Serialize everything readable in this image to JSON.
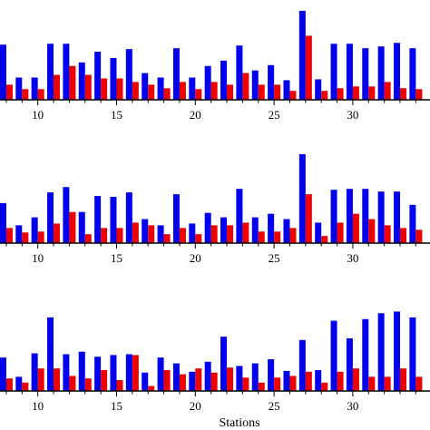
{
  "chart_data": [
    {
      "type": "bar",
      "panel": 1,
      "categories": [
        8,
        9,
        10,
        11,
        12,
        13,
        14,
        15,
        16,
        17,
        18,
        19,
        20,
        21,
        22,
        23,
        24,
        25,
        26,
        27,
        28,
        29,
        30,
        31,
        32,
        33,
        34
      ],
      "xticks": [
        "10",
        "15",
        "20",
        "25",
        "30"
      ],
      "xlim": [
        7.6,
        34.9
      ],
      "ylim": [
        0,
        1.02
      ],
      "series": [
        {
          "color": "#0000ee",
          "values": [
            0.62,
            0.25,
            0.25,
            0.63,
            0.63,
            0.42,
            0.54,
            0.47,
            0.57,
            0.3,
            0.25,
            0.58,
            0.25,
            0.38,
            0.44,
            0.61,
            0.33,
            0.39,
            0.22,
            1.0,
            0.23,
            0.63,
            0.63,
            0.58,
            0.6,
            0.64,
            0.58
          ]
        },
        {
          "color": "#ee0000",
          "values": [
            0.17,
            0.12,
            0.12,
            0.28,
            0.38,
            0.28,
            0.24,
            0.24,
            0.2,
            0.17,
            0.13,
            0.2,
            0.12,
            0.2,
            0.17,
            0.3,
            0.17,
            0.17,
            0.1,
            0.72,
            0.1,
            0.13,
            0.15,
            0.15,
            0.2,
            0.13,
            0.12
          ]
        }
      ]
    },
    {
      "type": "bar",
      "panel": 2,
      "categories": [
        8,
        9,
        10,
        11,
        12,
        13,
        14,
        15,
        16,
        17,
        18,
        19,
        20,
        21,
        22,
        23,
        24,
        25,
        26,
        27,
        28,
        29,
        30,
        31,
        32,
        33,
        34
      ],
      "xticks": [
        "10",
        "15",
        "20",
        "25",
        "30"
      ],
      "xlim": [
        7.6,
        34.9
      ],
      "ylim": [
        0,
        1.02
      ],
      "series": [
        {
          "color": "#0000ee",
          "values": [
            0.45,
            0.2,
            0.29,
            0.57,
            0.63,
            0.35,
            0.53,
            0.52,
            0.57,
            0.27,
            0.2,
            0.55,
            0.22,
            0.34,
            0.29,
            0.61,
            0.29,
            0.33,
            0.27,
            1.0,
            0.23,
            0.6,
            0.61,
            0.61,
            0.58,
            0.58,
            0.43
          ]
        },
        {
          "color": "#ee0000",
          "values": [
            0.17,
            0.12,
            0.13,
            0.22,
            0.35,
            0.1,
            0.17,
            0.17,
            0.23,
            0.2,
            0.1,
            0.17,
            0.1,
            0.2,
            0.2,
            0.23,
            0.13,
            0.13,
            0.17,
            0.55,
            0.08,
            0.23,
            0.33,
            0.27,
            0.2,
            0.17,
            0.15
          ]
        }
      ]
    },
    {
      "type": "bar",
      "panel": 3,
      "categories": [
        8,
        9,
        10,
        11,
        12,
        13,
        14,
        15,
        16,
        17,
        18,
        19,
        20,
        21,
        22,
        23,
        24,
        25,
        26,
        27,
        28,
        29,
        30,
        31,
        32,
        33,
        34
      ],
      "xticks": [
        "10",
        "15",
        "20",
        "25",
        "30"
      ],
      "xlim": [
        7.6,
        34.9
      ],
      "ylim": [
        0,
        1.02
      ],
      "series": [
        {
          "color": "#0000ee",
          "values": [
            0.4,
            0.17,
            0.45,
            0.88,
            0.44,
            0.47,
            0.41,
            0.43,
            0.44,
            0.22,
            0.4,
            0.33,
            0.23,
            0.35,
            0.65,
            0.3,
            0.33,
            0.38,
            0.24,
            0.61,
            0.25,
            0.84,
            0.63,
            0.86,
            0.93,
            0.95,
            0.88
          ]
        },
        {
          "color": "#ee0000",
          "values": [
            0.15,
            0.1,
            0.27,
            0.27,
            0.18,
            0.15,
            0.25,
            0.13,
            0.43,
            0.06,
            0.25,
            0.2,
            0.27,
            0.22,
            0.28,
            0.16,
            0.1,
            0.16,
            0.18,
            0.23,
            0.1,
            0.23,
            0.27,
            0.17,
            0.17,
            0.27,
            0.17
          ]
        }
      ]
    }
  ],
  "xlabel": "Stations"
}
